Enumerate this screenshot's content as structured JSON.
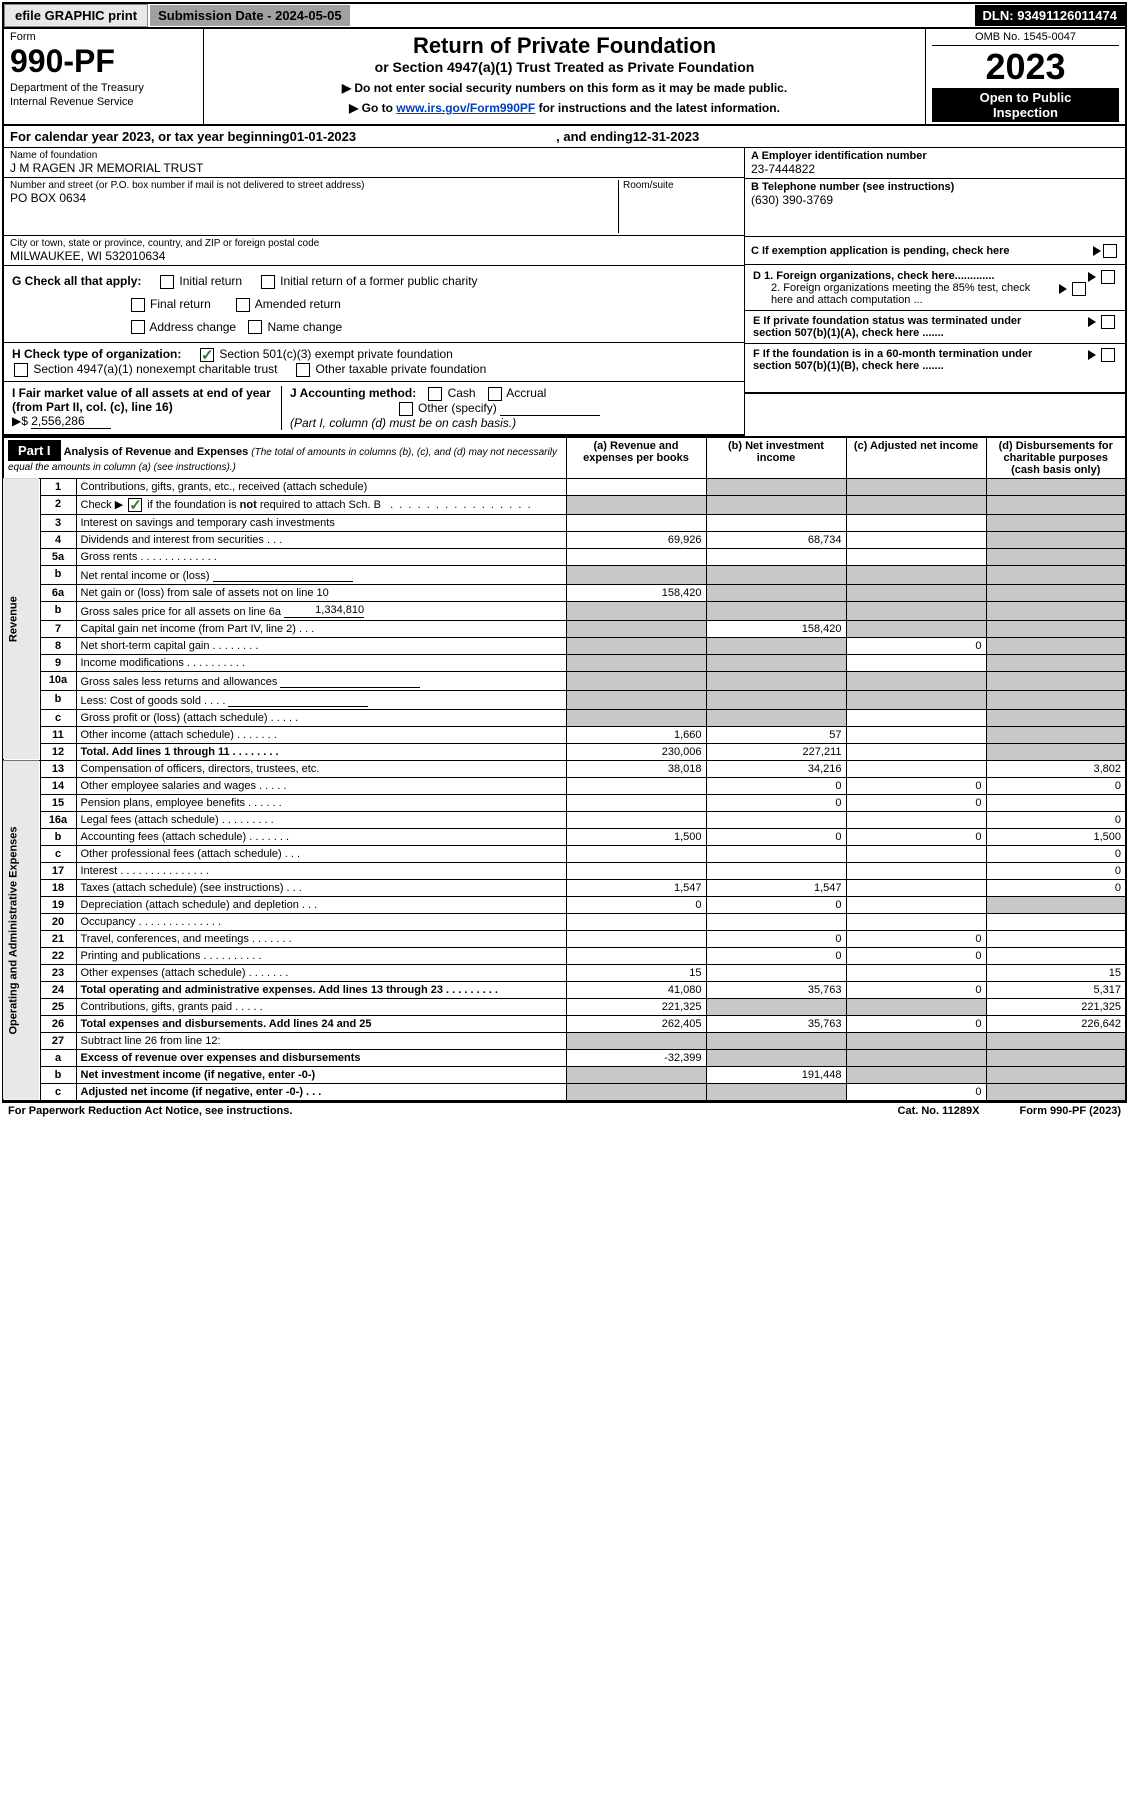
{
  "topbar": {
    "efile": "efile GRAPHIC print",
    "submission": "Submission Date - 2024-05-05",
    "dln": "DLN: 93491126011474"
  },
  "header": {
    "form_label": "Form",
    "form_number": "990-PF",
    "dept1": "Department of the Treasury",
    "dept2": "Internal Revenue Service",
    "title": "Return of Private Foundation",
    "sub1": "or Section 4947(a)(1) Trust Treated as Private Foundation",
    "sub2a": "▶ Do not enter social security numbers on this form as it may be made public.",
    "sub2b_prefix": "▶ Go to ",
    "sub2b_link": "www.irs.gov/Form990PF",
    "sub2b_suffix": " for instructions and the latest information.",
    "omb": "OMB No. 1545-0047",
    "year": "2023",
    "open1": "Open to Public",
    "open2": "Inspection"
  },
  "period": {
    "prefix": "For calendar year 2023, or tax year beginning ",
    "begin": "01-01-2023",
    "mid": ", and ending ",
    "end": "12-31-2023"
  },
  "foundation": {
    "name_label": "Name of foundation",
    "name": "J M RAGEN JR MEMORIAL TRUST",
    "addr_label": "Number and street (or P.O. box number if mail is not delivered to street address)",
    "addr": "PO BOX 0634",
    "room_label": "Room/suite",
    "city_label": "City or town, state or province, country, and ZIP or foreign postal code",
    "city": "MILWAUKEE, WI  532010634",
    "ein_label": "A Employer identification number",
    "ein": "23-7444822",
    "tel_label": "B Telephone number (see instructions)",
    "tel": "(630) 390-3769",
    "c_label": "C If exemption application is pending, check here"
  },
  "checks": {
    "g_label": "G Check all that apply:",
    "g_items": [
      "Initial return",
      "Initial return of a former public charity",
      "Final return",
      "Amended return",
      "Address change",
      "Name change"
    ],
    "h_label": "H Check type of organization:",
    "h_items": [
      "Section 501(c)(3) exempt private foundation",
      "Section 4947(a)(1) nonexempt charitable trust",
      "Other taxable private foundation"
    ],
    "i_label": "I Fair market value of all assets at end of year (from Part II, col. (c), line 16)",
    "i_val": "2,556,286",
    "j_label": "J Accounting method:",
    "j_items": [
      "Cash",
      "Accrual",
      "Other (specify)"
    ],
    "j_note": "(Part I, column (d) must be on cash basis.)",
    "d1": "D 1. Foreign organizations, check here.............",
    "d2": "2. Foreign organizations meeting the 85% test, check here and attach computation ...",
    "e": "E  If private foundation status was terminated under section 507(b)(1)(A), check here .......",
    "f": "F  If the foundation is in a 60-month termination under section 507(b)(1)(B), check here .......",
    "arrow": "▶",
    "dollar": "▶$"
  },
  "part1": {
    "label": "Part I",
    "title": "Analysis of Revenue and Expenses",
    "title_note": "(The total of amounts in columns (b), (c), and (d) may not necessarily equal the amounts in column (a) (see instructions).)",
    "col_a": "(a)   Revenue and expenses per books",
    "col_b": "(b)   Net investment income",
    "col_c": "(c)   Adjusted net income",
    "col_d": "(d)   Disbursements for charitable purposes (cash basis only)",
    "side_revenue": "Revenue",
    "side_expenses": "Operating and Administrative Expenses"
  },
  "rows": [
    {
      "n": "1",
      "desc": "Contributions, gifts, grants, etc., received (attach schedule)",
      "a": "",
      "b": "",
      "c": "",
      "d": "",
      "greyA": false,
      "greyB": true,
      "greyC": true,
      "greyD": true
    },
    {
      "n": "2",
      "desc": "Check ▶ ☑ if the foundation is not required to attach Sch. B   .  .  .  .  .  .  .  .  .  .  .  .  .  .  .  .  .",
      "a": "",
      "b": "",
      "c": "",
      "d": "",
      "greyA": true,
      "greyB": true,
      "greyC": true,
      "greyD": true,
      "hasCheck": true
    },
    {
      "n": "3",
      "desc": "Interest on savings and temporary cash investments",
      "a": "",
      "b": "",
      "c": "",
      "d": "",
      "greyD": true
    },
    {
      "n": "4",
      "desc": "Dividends and interest from securities   .   .   .",
      "a": "69,926",
      "b": "68,734",
      "c": "",
      "d": "",
      "greyD": true
    },
    {
      "n": "5a",
      "desc": "Gross rents   .   .  .  .  .  .  .  .  .  .  .  .  .",
      "a": "",
      "b": "",
      "c": "",
      "d": "",
      "greyD": true
    },
    {
      "n": "b",
      "desc": "Net rental income or (loss)",
      "a": "",
      "b": "",
      "c": "",
      "d": "",
      "greyA": true,
      "greyB": true,
      "greyC": true,
      "greyD": true,
      "hasSub": true
    },
    {
      "n": "6a",
      "desc": "Net gain or (loss) from sale of assets not on line 10",
      "a": "158,420",
      "b": "",
      "c": "",
      "d": "",
      "greyB": true,
      "greyC": true,
      "greyD": true
    },
    {
      "n": "b",
      "desc": "Gross sales price for all assets on line 6a",
      "a": "",
      "b": "",
      "c": "",
      "d": "",
      "greyA": true,
      "greyB": true,
      "greyC": true,
      "greyD": true,
      "subval": "1,334,810"
    },
    {
      "n": "7",
      "desc": "Capital gain net income (from Part IV, line 2)   .   .   .",
      "a": "",
      "b": "158,420",
      "c": "",
      "d": "",
      "greyA": true,
      "greyC": true,
      "greyD": true
    },
    {
      "n": "8",
      "desc": "Net short-term capital gain  .  .  .  .  .  .  .  .",
      "a": "",
      "b": "",
      "c": "0",
      "d": "",
      "greyA": true,
      "greyB": true,
      "greyD": true
    },
    {
      "n": "9",
      "desc": "Income modifications  .  .  .  .  .  .  .  .  .  .",
      "a": "",
      "b": "",
      "c": "",
      "d": "",
      "greyA": true,
      "greyB": true,
      "greyD": true
    },
    {
      "n": "10a",
      "desc": "Gross sales less returns and allowances",
      "a": "",
      "b": "",
      "c": "",
      "d": "",
      "greyA": true,
      "greyB": true,
      "greyC": true,
      "greyD": true,
      "hasSub": true
    },
    {
      "n": "b",
      "desc": "Less: Cost of goods sold   .   .   .   .",
      "a": "",
      "b": "",
      "c": "",
      "d": "",
      "greyA": true,
      "greyB": true,
      "greyC": true,
      "greyD": true,
      "hasSub": true
    },
    {
      "n": "c",
      "desc": "Gross profit or (loss) (attach schedule)   .   .   .   .   .",
      "a": "",
      "b": "",
      "c": "",
      "d": "",
      "greyA": true,
      "greyB": true,
      "greyD": true
    },
    {
      "n": "11",
      "desc": "Other income (attach schedule)   .  .  .  .  .  .  .",
      "a": "1,660",
      "b": "57",
      "c": "",
      "d": "",
      "greyD": true
    },
    {
      "n": "12",
      "desc": "Total. Add lines 1 through 11   .  .  .  .  .  .  .  .",
      "a": "230,006",
      "b": "227,211",
      "c": "",
      "d": "",
      "bold": true,
      "greyD": true
    },
    {
      "n": "13",
      "desc": "Compensation of officers, directors, trustees, etc.",
      "a": "38,018",
      "b": "34,216",
      "c": "",
      "d": "3,802"
    },
    {
      "n": "14",
      "desc": "Other employee salaries and wages   .   .   .   .   .",
      "a": "",
      "b": "0",
      "c": "0",
      "d": "0"
    },
    {
      "n": "15",
      "desc": "Pension plans, employee benefits  .  .  .  .  .  .",
      "a": "",
      "b": "0",
      "c": "0",
      "d": ""
    },
    {
      "n": "16a",
      "desc": "Legal fees (attach schedule) .  .  .  .  .  .  .  .  .",
      "a": "",
      "b": "",
      "c": "",
      "d": "0"
    },
    {
      "n": "b",
      "desc": "Accounting fees (attach schedule) .  .  .  .  .  .  .",
      "a": "1,500",
      "b": "0",
      "c": "0",
      "d": "1,500"
    },
    {
      "n": "c",
      "desc": "Other professional fees (attach schedule)   .   .   .",
      "a": "",
      "b": "",
      "c": "",
      "d": "0"
    },
    {
      "n": "17",
      "desc": "Interest .  .  .  .  .  .  .  .  .  .  .  .  .  .  .",
      "a": "",
      "b": "",
      "c": "",
      "d": "0"
    },
    {
      "n": "18",
      "desc": "Taxes (attach schedule) (see instructions)   .   .   .",
      "a": "1,547",
      "b": "1,547",
      "c": "",
      "d": "0"
    },
    {
      "n": "19",
      "desc": "Depreciation (attach schedule) and depletion   .   .   .",
      "a": "0",
      "b": "0",
      "c": "",
      "d": "",
      "greyD": true
    },
    {
      "n": "20",
      "desc": "Occupancy .  .  .  .  .  .  .  .  .  .  .  .  .  .",
      "a": "",
      "b": "",
      "c": "",
      "d": ""
    },
    {
      "n": "21",
      "desc": "Travel, conferences, and meetings .  .  .  .  .  .  .",
      "a": "",
      "b": "0",
      "c": "0",
      "d": ""
    },
    {
      "n": "22",
      "desc": "Printing and publications .  .  .  .  .  .  .  .  .  .",
      "a": "",
      "b": "0",
      "c": "0",
      "d": ""
    },
    {
      "n": "23",
      "desc": "Other expenses (attach schedule) .  .  .  .  .  .  .",
      "a": "15",
      "b": "",
      "c": "",
      "d": "15"
    },
    {
      "n": "24",
      "desc": "Total operating and administrative expenses. Add lines 13 through 23   .  .  .  .  .  .  .  .  .",
      "a": "41,080",
      "b": "35,763",
      "c": "0",
      "d": "5,317",
      "bold": true
    },
    {
      "n": "25",
      "desc": "Contributions, gifts, grants paid   .   .   .   .   .",
      "a": "221,325",
      "b": "",
      "c": "",
      "d": "221,325",
      "greyB": true,
      "greyC": true
    },
    {
      "n": "26",
      "desc": "Total expenses and disbursements. Add lines 24 and 25",
      "a": "262,405",
      "b": "35,763",
      "c": "0",
      "d": "226,642",
      "bold": true
    },
    {
      "n": "27",
      "desc": "Subtract line 26 from line 12:",
      "a": "",
      "b": "",
      "c": "",
      "d": "",
      "greyA": true,
      "greyB": true,
      "greyC": true,
      "greyD": true
    },
    {
      "n": "a",
      "desc": "Excess of revenue over expenses and disbursements",
      "a": "-32,399",
      "b": "",
      "c": "",
      "d": "",
      "bold": true,
      "greyB": true,
      "greyC": true,
      "greyD": true
    },
    {
      "n": "b",
      "desc": "Net investment income (if negative, enter -0-)",
      "a": "",
      "b": "191,448",
      "c": "",
      "d": "",
      "bold": true,
      "greyA": true,
      "greyC": true,
      "greyD": true
    },
    {
      "n": "c",
      "desc": "Adjusted net income (if negative, enter -0-)   .   .   .",
      "a": "",
      "b": "",
      "c": "0",
      "d": "",
      "bold": true,
      "greyA": true,
      "greyB": true,
      "greyD": true
    }
  ],
  "footer": {
    "left": "For Paperwork Reduction Act Notice, see instructions.",
    "center": "Cat. No. 11289X",
    "right": "Form 990-PF (2023)"
  }
}
